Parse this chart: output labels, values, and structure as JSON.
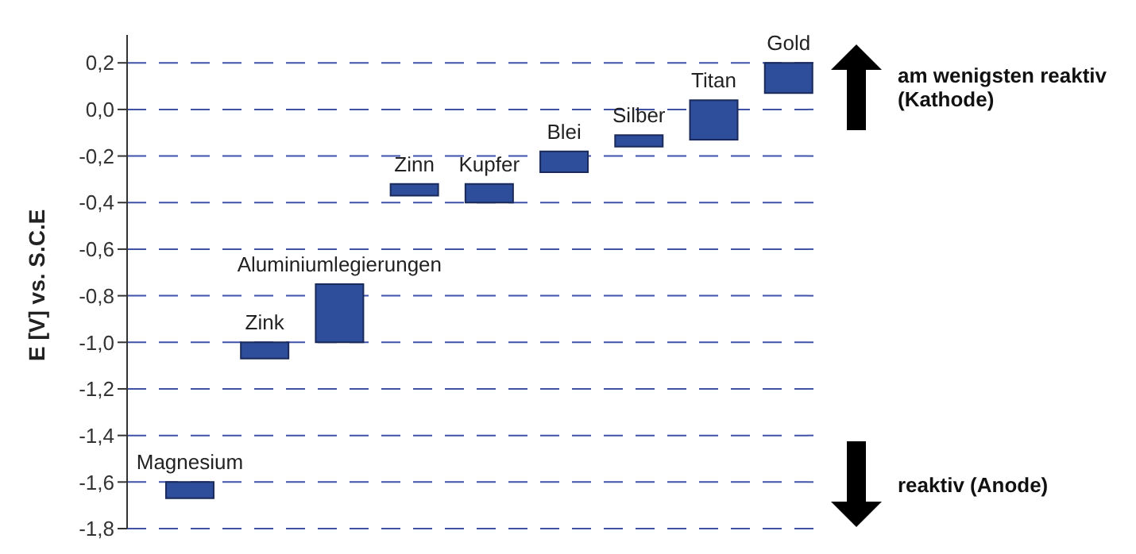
{
  "chart_data": {
    "type": "bar",
    "ylabel": "E [V] vs. S.C.E",
    "categories": [
      "Magnesium",
      "Zink",
      "Aluminiumlegierungen",
      "Zinn",
      "Kupfer",
      "Blei",
      "Silber",
      "Titan",
      "Gold"
    ],
    "base": [
      -1.67,
      -1.07,
      -1.0,
      -0.37,
      -0.4,
      -0.27,
      -0.16,
      -0.13,
      0.07
    ],
    "values": [
      0.07,
      0.07,
      0.25,
      0.05,
      0.08,
      0.09,
      0.05,
      0.17,
      0.13
    ],
    "color": "#2e4d9b",
    "ylim": [
      -1.8,
      0.32
    ],
    "yticks": [
      {
        "value": -1.8,
        "label": "-1,8"
      },
      {
        "value": -1.6,
        "label": "-1,6"
      },
      {
        "value": -1.4,
        "label": "-1,4"
      },
      {
        "value": -1.2,
        "label": "-1,2"
      },
      {
        "value": -1.0,
        "label": "-1,0"
      },
      {
        "value": -0.8,
        "label": "-0,8"
      },
      {
        "value": -0.6,
        "label": "-0,6"
      },
      {
        "value": -0.4,
        "label": "-0,4"
      },
      {
        "value": -0.2,
        "label": "-0,2"
      },
      {
        "value": 0.0,
        "label": "0,0"
      },
      {
        "value": 0.2,
        "label": "0,2"
      }
    ],
    "grid": "y",
    "line_style": "dashed",
    "tick_labels": "y",
    "annotations": [
      "am wenigsten reaktiv (Kathode)",
      "reaktiv (Anode)"
    ]
  }
}
